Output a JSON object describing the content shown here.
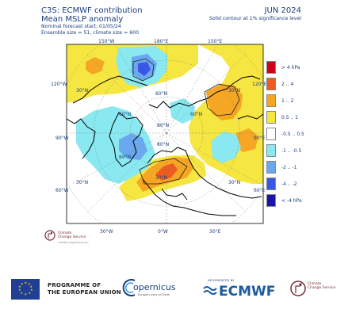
{
  "header": {
    "title_line1": "C3S: ECMWF contribution",
    "title_line2": "Mean MSLP anomaly",
    "forecast_start": "Nominal forecast start: 01/05/24",
    "ensemble": "Ensemble size = 51, climate size = 600",
    "period": "JUN 2024",
    "contour_note": "Solid contour at 1% significance level"
  },
  "map": {
    "projection": "north-polar-stereographic",
    "lon_labels": [
      "150°W",
      "180°E",
      "150°E",
      "120°W",
      "120°E",
      "90°W",
      "90°E",
      "60°W",
      "60°E",
      "30°W",
      "0°W",
      "30°E"
    ],
    "lat_labels": [
      "30°N",
      "30°N",
      "60°N",
      "60°N",
      "60°N",
      "60°N",
      "80°N",
      "80°N",
      "30°N",
      "30°N",
      "30°N"
    ],
    "features": [
      "blue anomaly over North Pacific / Alaska",
      "orange-red anomaly over Scandinavia",
      "cyan anomaly over Greenland and North Atlantic",
      "yellow anomaly over Siberia"
    ]
  },
  "legend": {
    "unit": "hPa",
    "items": [
      {
        "label": "> 4 hPa",
        "color": "#d0021b"
      },
      {
        "label": "2 .. 4",
        "color": "#f05a1f"
      },
      {
        "label": "1 .. 2",
        "color": "#f5a623"
      },
      {
        "label": "0.5 .. 1",
        "color": "#f6e642"
      },
      {
        "label": "-0.5 .. 0.5",
        "color": "#ffffff"
      },
      {
        "label": "-1 .. -0.5",
        "color": "#8ae8f0"
      },
      {
        "label": "-2 .. -1",
        "color": "#6aa8ef"
      },
      {
        "label": "-4 .. -2",
        "color": "#3a56e6"
      },
      {
        "label": "< -4 hPa",
        "color": "#1a14a8"
      }
    ]
  },
  "c3s_small": {
    "name_line1": "Climate",
    "name_line2": "Change Service",
    "url": "climate.copernicus.eu"
  },
  "footer": {
    "eu_line1": "PROGRAMME OF",
    "eu_line2": "THE EUROPEAN UNION",
    "copernicus": "opernicus",
    "copernicus_sub": "Europe's eyes on Earth",
    "implemented_by": "IMPLEMENTED BY",
    "ecmwf": "ECMWF",
    "c3s_line1": "Climate",
    "c3s_line2": "Change Service"
  }
}
